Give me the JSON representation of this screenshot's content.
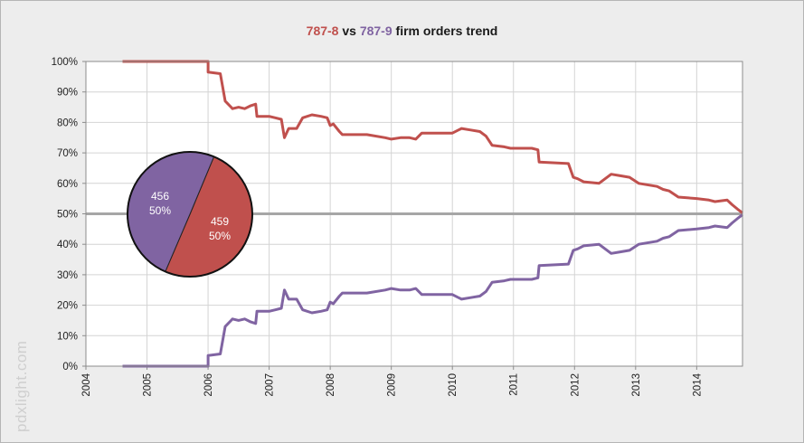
{
  "chart_data": {
    "type": "line",
    "title_parts": [
      "787-8",
      " vs ",
      "787-9",
      " firm orders trend"
    ],
    "watermark": "pdxlight.com",
    "xlim": [
      2004,
      2014.75
    ],
    "ylim": [
      0,
      100
    ],
    "x_ticks": [
      "2004",
      "2005",
      "2006",
      "2007",
      "2008",
      "2009",
      "2010",
      "2011",
      "2012",
      "2013",
      "2014"
    ],
    "y_ticks": [
      "0%",
      "10%",
      "20%",
      "30%",
      "40%",
      "50%",
      "60%",
      "70%",
      "80%",
      "90%",
      "100%"
    ],
    "grid": true,
    "reference_line": 50,
    "colors": {
      "787-8": "#c0504d",
      "787-9": "#8064a2",
      "reference": "#a6a6a6"
    },
    "series": [
      {
        "name": "787-8",
        "points": [
          [
            2004.6,
            100
          ],
          [
            2006.0,
            100
          ],
          [
            2006.0,
            96.5
          ],
          [
            2006.2,
            96
          ],
          [
            2006.28,
            87
          ],
          [
            2006.4,
            84.5
          ],
          [
            2006.5,
            85
          ],
          [
            2006.6,
            84.5
          ],
          [
            2006.7,
            85.5
          ],
          [
            2006.78,
            86
          ],
          [
            2006.8,
            82
          ],
          [
            2007.0,
            82
          ],
          [
            2007.1,
            81.5
          ],
          [
            2007.2,
            81
          ],
          [
            2007.25,
            75
          ],
          [
            2007.32,
            78
          ],
          [
            2007.45,
            78
          ],
          [
            2007.55,
            81.5
          ],
          [
            2007.7,
            82.5
          ],
          [
            2007.85,
            82
          ],
          [
            2007.95,
            81.5
          ],
          [
            2008.0,
            79
          ],
          [
            2008.05,
            79.5
          ],
          [
            2008.15,
            77
          ],
          [
            2008.2,
            76
          ],
          [
            2008.6,
            76
          ],
          [
            2008.9,
            75
          ],
          [
            2009.0,
            74.5
          ],
          [
            2009.15,
            75
          ],
          [
            2009.3,
            75
          ],
          [
            2009.4,
            74.5
          ],
          [
            2009.5,
            76.5
          ],
          [
            2010.0,
            76.5
          ],
          [
            2010.15,
            78
          ],
          [
            2010.3,
            77.5
          ],
          [
            2010.45,
            77
          ],
          [
            2010.55,
            75.5
          ],
          [
            2010.65,
            72.5
          ],
          [
            2010.85,
            72
          ],
          [
            2010.95,
            71.5
          ],
          [
            2011.3,
            71.5
          ],
          [
            2011.4,
            71
          ],
          [
            2011.42,
            67
          ],
          [
            2011.9,
            66.5
          ],
          [
            2011.98,
            62
          ],
          [
            2012.05,
            61.5
          ],
          [
            2012.15,
            60.5
          ],
          [
            2012.4,
            60
          ],
          [
            2012.6,
            63
          ],
          [
            2012.75,
            62.5
          ],
          [
            2012.9,
            62
          ],
          [
            2013.05,
            60
          ],
          [
            2013.35,
            59
          ],
          [
            2013.45,
            58
          ],
          [
            2013.55,
            57.5
          ],
          [
            2013.7,
            55.5
          ],
          [
            2014.0,
            55
          ],
          [
            2014.2,
            54.5
          ],
          [
            2014.3,
            54
          ],
          [
            2014.5,
            54.5
          ],
          [
            2014.58,
            53
          ],
          [
            2014.67,
            51.5
          ],
          [
            2014.75,
            50.3
          ]
        ],
        "total": 459,
        "share_label": "50%"
      },
      {
        "name": "787-9",
        "points": [
          [
            2004.6,
            0
          ],
          [
            2006.0,
            0
          ],
          [
            2006.0,
            3.5
          ],
          [
            2006.2,
            4
          ],
          [
            2006.28,
            13
          ],
          [
            2006.4,
            15.5
          ],
          [
            2006.5,
            15
          ],
          [
            2006.6,
            15.5
          ],
          [
            2006.7,
            14.5
          ],
          [
            2006.78,
            14
          ],
          [
            2006.8,
            18
          ],
          [
            2007.0,
            18
          ],
          [
            2007.1,
            18.5
          ],
          [
            2007.2,
            19
          ],
          [
            2007.25,
            25
          ],
          [
            2007.32,
            22
          ],
          [
            2007.45,
            22
          ],
          [
            2007.55,
            18.5
          ],
          [
            2007.7,
            17.5
          ],
          [
            2007.85,
            18
          ],
          [
            2007.95,
            18.5
          ],
          [
            2008.0,
            21
          ],
          [
            2008.05,
            20.5
          ],
          [
            2008.15,
            23
          ],
          [
            2008.2,
            24
          ],
          [
            2008.6,
            24
          ],
          [
            2008.9,
            25
          ],
          [
            2009.0,
            25.5
          ],
          [
            2009.15,
            25
          ],
          [
            2009.3,
            25
          ],
          [
            2009.4,
            25.5
          ],
          [
            2009.5,
            23.5
          ],
          [
            2010.0,
            23.5
          ],
          [
            2010.15,
            22
          ],
          [
            2010.3,
            22.5
          ],
          [
            2010.45,
            23
          ],
          [
            2010.55,
            24.5
          ],
          [
            2010.65,
            27.5
          ],
          [
            2010.85,
            28
          ],
          [
            2010.95,
            28.5
          ],
          [
            2011.3,
            28.5
          ],
          [
            2011.4,
            29
          ],
          [
            2011.42,
            33
          ],
          [
            2011.9,
            33.5
          ],
          [
            2011.98,
            38
          ],
          [
            2012.05,
            38.5
          ],
          [
            2012.15,
            39.5
          ],
          [
            2012.4,
            40
          ],
          [
            2012.6,
            37
          ],
          [
            2012.75,
            37.5
          ],
          [
            2012.9,
            38
          ],
          [
            2013.05,
            40
          ],
          [
            2013.35,
            41
          ],
          [
            2013.45,
            42
          ],
          [
            2013.55,
            42.5
          ],
          [
            2013.7,
            44.5
          ],
          [
            2014.0,
            45
          ],
          [
            2014.2,
            45.5
          ],
          [
            2014.3,
            46
          ],
          [
            2014.5,
            45.5
          ],
          [
            2014.58,
            47
          ],
          [
            2014.67,
            48.5
          ],
          [
            2014.75,
            49.7
          ]
        ],
        "total": 456,
        "share_label": "50%"
      }
    ],
    "inset_pie": {
      "type": "pie",
      "slices": [
        {
          "name": "787-8",
          "value": 459,
          "label_value": "459",
          "label_pct": "50%"
        },
        {
          "name": "787-9",
          "value": 456,
          "label_value": "456",
          "label_pct": "50%"
        }
      ]
    }
  }
}
